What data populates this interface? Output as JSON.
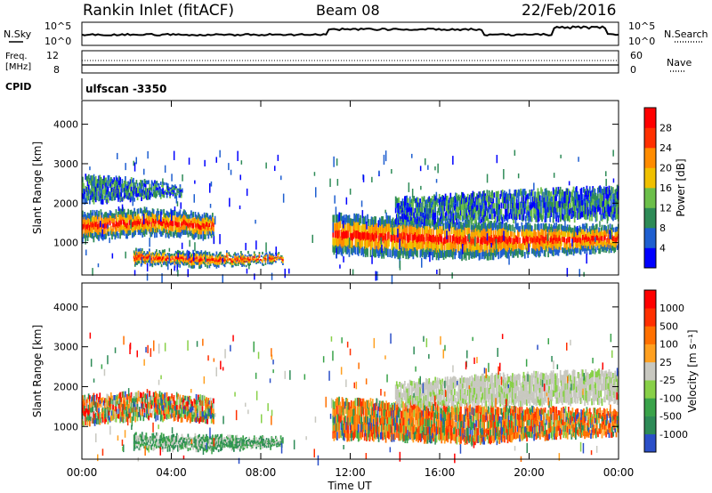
{
  "header": {
    "station": "Rankin Inlet (fitACF)",
    "beam": "Beam 08",
    "date": "22/Feb/2016"
  },
  "top_panels": {
    "nsky_label": "N.Sky",
    "nsearch_label": "N.Search",
    "noise_ticks_left": [
      "10^5",
      "10^0"
    ],
    "noise_ticks_right": [
      "10^5",
      "10^0"
    ],
    "freq_label_1": "Freq.",
    "freq_label_2": "[MHz]",
    "freq_ticks": [
      "12",
      "8"
    ],
    "nave_label": "Nave",
    "nave_ticks": [
      "60",
      "0"
    ],
    "cpid_label": "CPID",
    "cpid_value": "ulfscan -3350"
  },
  "chart_data": [
    {
      "type": "heatmap",
      "title": "",
      "ylabel": "Slant Range [km]",
      "ylim": [
        180,
        4600
      ],
      "yticks": [
        "1000",
        "2000",
        "3000",
        "4000"
      ],
      "xlim": [
        0,
        24
      ],
      "colorbar": {
        "label": "Power [dB]",
        "ticks": [
          "4",
          "8",
          "12",
          "16",
          "20",
          "24",
          "28"
        ],
        "colors": [
          "#0000ff",
          "#1f5fd0",
          "#2e8b57",
          "#6cbf4a",
          "#f0c000",
          "#ff8c00",
          "#ff3000",
          "#ff0000"
        ]
      },
      "bands": [
        {
          "t0": 0.0,
          "t1": 5.9,
          "r_low": [
            1050,
            1200,
            1120
          ],
          "r_high": [
            1750,
            1850,
            1700
          ],
          "level": "high"
        },
        {
          "t0": 2.3,
          "t1": 9.0,
          "r_low": [
            450,
            400,
            500
          ],
          "r_high": [
            800,
            750,
            700
          ],
          "level": "high"
        },
        {
          "t0": 11.2,
          "t1": 24.0,
          "r_low": [
            700,
            600,
            800
          ],
          "r_high": [
            1700,
            1500,
            1400
          ],
          "level": "high"
        },
        {
          "t0": 14.0,
          "t1": 24.0,
          "r_low": [
            1500,
            1550,
            1600
          ],
          "r_high": [
            2100,
            2300,
            2400
          ],
          "level": "low"
        },
        {
          "t0": 0.0,
          "t1": 4.5,
          "r_low": [
            2000,
            2100,
            2200
          ],
          "r_high": [
            2700,
            2600,
            2400
          ],
          "level": "low"
        }
      ]
    },
    {
      "type": "heatmap",
      "title": "",
      "ylabel": "Slant Range [km]",
      "ylim": [
        180,
        4600
      ],
      "yticks": [
        "1000",
        "2000",
        "3000",
        "4000"
      ],
      "xlim": [
        0,
        24
      ],
      "xticks": [
        "00:00",
        "04:00",
        "08:00",
        "12:00",
        "16:00",
        "20:00",
        "00:00"
      ],
      "xlabel": "Time UT",
      "colorbar": {
        "label": "Velocity [m s⁻¹]",
        "ticks": [
          "1000",
          "500",
          "100",
          "25",
          "-25",
          "-100",
          "-500",
          "-1000"
        ],
        "colors": [
          "#2b4fc8",
          "#2e8b57",
          "#3aa34a",
          "#88d048",
          "#c8c8c0",
          "#ffa020",
          "#ff7000",
          "#ff3000",
          "#ff0000"
        ]
      },
      "bands": [
        {
          "t0": 0.0,
          "t1": 5.9,
          "r_low": [
            1050,
            1200,
            1120
          ],
          "r_high": [
            1750,
            1850,
            1700
          ],
          "level": "mixed"
        },
        {
          "t0": 2.3,
          "t1": 9.0,
          "r_low": [
            450,
            400,
            500
          ],
          "r_high": [
            800,
            750,
            700
          ],
          "level": "green"
        },
        {
          "t0": 11.2,
          "t1": 24.0,
          "r_low": [
            700,
            600,
            800
          ],
          "r_high": [
            1700,
            1500,
            1400
          ],
          "level": "orange"
        },
        {
          "t0": 14.0,
          "t1": 24.0,
          "r_low": [
            1500,
            1550,
            1600
          ],
          "r_high": [
            2100,
            2300,
            2400
          ],
          "level": "grey"
        }
      ]
    }
  ]
}
